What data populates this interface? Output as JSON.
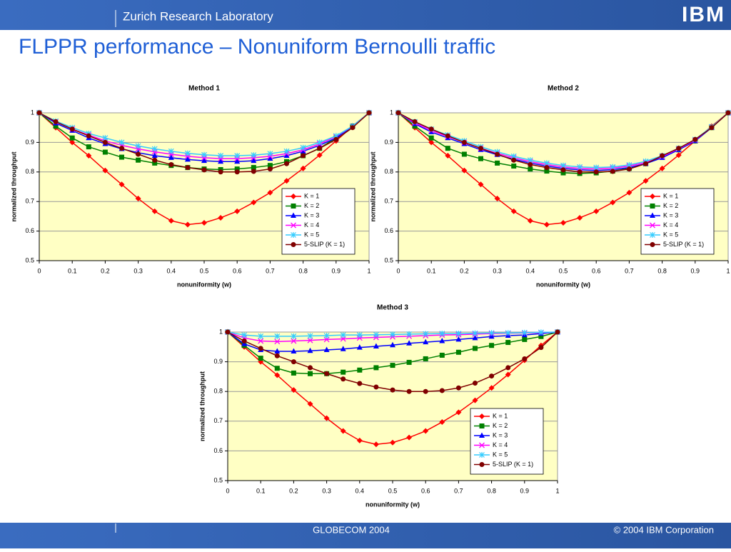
{
  "header": {
    "lab": "Zurich Research Laboratory",
    "logo": "IBM",
    "title": "FLPPR performance – Nonuniform Bernoulli traffic"
  },
  "footer": {
    "event": "GLOBECOM 2004",
    "copyright": "© 2004 IBM Corporation"
  },
  "chart_data": [
    {
      "type": "line",
      "title": "Method 1",
      "xlabel": "nonuniformity (w)",
      "ylabel": "normalized throughput",
      "x": [
        0,
        0.05,
        0.1,
        0.15,
        0.2,
        0.25,
        0.3,
        0.35,
        0.4,
        0.45,
        0.5,
        0.55,
        0.6,
        0.65,
        0.7,
        0.75,
        0.8,
        0.85,
        0.9,
        0.95,
        1
      ],
      "xlim": [
        0,
        1
      ],
      "xticks": [
        0,
        0.1,
        0.2,
        0.3,
        0.4,
        0.5,
        0.6,
        0.7,
        0.8,
        0.9,
        1
      ],
      "ylim": [
        0.5,
        1
      ],
      "yticks": [
        0.5,
        0.6,
        0.7,
        0.8,
        0.9,
        1
      ],
      "grid": true,
      "legend": "lower right",
      "series": [
        {
          "name": "K = 1",
          "color": "#ff0000",
          "marker": "diamond",
          "values": [
            1,
            0.95,
            0.9,
            0.855,
            0.805,
            0.758,
            0.71,
            0.667,
            0.635,
            0.622,
            0.628,
            0.645,
            0.667,
            0.697,
            0.73,
            0.77,
            0.812,
            0.857,
            0.905,
            0.955,
            1
          ]
        },
        {
          "name": "K = 2",
          "color": "#008000",
          "marker": "square",
          "values": [
            1,
            0.955,
            0.915,
            0.885,
            0.867,
            0.85,
            0.84,
            0.83,
            0.822,
            0.815,
            0.81,
            0.808,
            0.81,
            0.815,
            0.822,
            0.835,
            0.855,
            0.88,
            0.915,
            0.955,
            1
          ]
        },
        {
          "name": "K = 3",
          "color": "#0000ff",
          "marker": "triangle",
          "values": [
            1,
            0.965,
            0.94,
            0.915,
            0.895,
            0.878,
            0.865,
            0.855,
            0.848,
            0.842,
            0.838,
            0.835,
            0.835,
            0.838,
            0.845,
            0.855,
            0.87,
            0.89,
            0.915,
            0.955,
            1
          ]
        },
        {
          "name": "K = 4",
          "color": "#ff00ff",
          "marker": "x",
          "values": [
            1,
            0.97,
            0.945,
            0.925,
            0.905,
            0.89,
            0.878,
            0.868,
            0.86,
            0.853,
            0.848,
            0.845,
            0.845,
            0.848,
            0.853,
            0.862,
            0.875,
            0.895,
            0.92,
            0.955,
            1
          ]
        },
        {
          "name": "K = 5",
          "color": "#33ccff",
          "marker": "star",
          "values": [
            1,
            0.972,
            0.95,
            0.93,
            0.915,
            0.9,
            0.888,
            0.878,
            0.87,
            0.863,
            0.858,
            0.855,
            0.855,
            0.857,
            0.862,
            0.87,
            0.882,
            0.9,
            0.922,
            0.955,
            1
          ]
        },
        {
          "name": "5-SLIP (K = 1)",
          "color": "#800000",
          "marker": "circle",
          "values": [
            1,
            0.97,
            0.945,
            0.922,
            0.9,
            0.88,
            0.86,
            0.84,
            0.825,
            0.815,
            0.807,
            0.8,
            0.8,
            0.802,
            0.81,
            0.828,
            0.855,
            0.88,
            0.91,
            0.95,
            1
          ]
        }
      ]
    },
    {
      "type": "line",
      "title": "Method 2",
      "xlabel": "nonuniformity (w)",
      "ylabel": "normalized throughput",
      "x": [
        0,
        0.05,
        0.1,
        0.15,
        0.2,
        0.25,
        0.3,
        0.35,
        0.4,
        0.45,
        0.5,
        0.55,
        0.6,
        0.65,
        0.7,
        0.75,
        0.8,
        0.85,
        0.9,
        0.95,
        1
      ],
      "xlim": [
        0,
        1
      ],
      "xticks": [
        0,
        0.1,
        0.2,
        0.3,
        0.4,
        0.5,
        0.6,
        0.7,
        0.8,
        0.9,
        1
      ],
      "ylim": [
        0.5,
        1
      ],
      "yticks": [
        0.5,
        0.6,
        0.7,
        0.8,
        0.9,
        1
      ],
      "grid": true,
      "legend": "lower right",
      "series": [
        {
          "name": "K = 1",
          "color": "#ff0000",
          "marker": "diamond",
          "values": [
            1,
            0.95,
            0.9,
            0.855,
            0.805,
            0.758,
            0.71,
            0.667,
            0.635,
            0.622,
            0.628,
            0.645,
            0.667,
            0.697,
            0.73,
            0.77,
            0.812,
            0.857,
            0.905,
            0.955,
            1
          ]
        },
        {
          "name": "K = 2",
          "color": "#008000",
          "marker": "square",
          "values": [
            1,
            0.955,
            0.915,
            0.88,
            0.86,
            0.845,
            0.83,
            0.82,
            0.81,
            0.803,
            0.797,
            0.795,
            0.797,
            0.803,
            0.812,
            0.828,
            0.85,
            0.875,
            0.905,
            0.95,
            1
          ]
        },
        {
          "name": "K = 3",
          "color": "#0000ff",
          "marker": "triangle",
          "values": [
            1,
            0.963,
            0.935,
            0.915,
            0.895,
            0.875,
            0.858,
            0.843,
            0.83,
            0.82,
            0.812,
            0.807,
            0.805,
            0.808,
            0.815,
            0.828,
            0.848,
            0.875,
            0.905,
            0.95,
            1
          ]
        },
        {
          "name": "K = 4",
          "color": "#ff00ff",
          "marker": "x",
          "values": [
            1,
            0.966,
            0.94,
            0.92,
            0.9,
            0.88,
            0.863,
            0.848,
            0.835,
            0.825,
            0.817,
            0.812,
            0.81,
            0.813,
            0.82,
            0.832,
            0.852,
            0.878,
            0.908,
            0.952,
            1
          ]
        },
        {
          "name": "K = 5",
          "color": "#33ccff",
          "marker": "star",
          "values": [
            1,
            0.97,
            0.945,
            0.925,
            0.905,
            0.885,
            0.868,
            0.853,
            0.84,
            0.83,
            0.822,
            0.817,
            0.815,
            0.817,
            0.824,
            0.836,
            0.855,
            0.88,
            0.91,
            0.953,
            1
          ]
        },
        {
          "name": "5-SLIP (K = 1)",
          "color": "#800000",
          "marker": "circle",
          "values": [
            1,
            0.97,
            0.945,
            0.922,
            0.9,
            0.88,
            0.86,
            0.84,
            0.825,
            0.815,
            0.807,
            0.8,
            0.8,
            0.802,
            0.81,
            0.828,
            0.855,
            0.88,
            0.91,
            0.95,
            1
          ]
        }
      ]
    },
    {
      "type": "line",
      "title": "Method 3",
      "xlabel": "nonuniformity (w)",
      "ylabel": "normalized throughput",
      "x": [
        0,
        0.05,
        0.1,
        0.15,
        0.2,
        0.25,
        0.3,
        0.35,
        0.4,
        0.45,
        0.5,
        0.55,
        0.6,
        0.65,
        0.7,
        0.75,
        0.8,
        0.85,
        0.9,
        0.95,
        1
      ],
      "xlim": [
        0,
        1
      ],
      "xticks": [
        0,
        0.1,
        0.2,
        0.3,
        0.4,
        0.5,
        0.6,
        0.7,
        0.8,
        0.9,
        1
      ],
      "ylim": [
        0.5,
        1
      ],
      "yticks": [
        0.5,
        0.6,
        0.7,
        0.8,
        0.9,
        1
      ],
      "grid": true,
      "legend": "lower right",
      "series": [
        {
          "name": "K = 1",
          "color": "#ff0000",
          "marker": "diamond",
          "values": [
            1,
            0.95,
            0.9,
            0.855,
            0.805,
            0.758,
            0.71,
            0.667,
            0.635,
            0.622,
            0.628,
            0.645,
            0.667,
            0.697,
            0.73,
            0.77,
            0.812,
            0.857,
            0.905,
            0.955,
            1
          ]
        },
        {
          "name": "K = 2",
          "color": "#008000",
          "marker": "square",
          "values": [
            1,
            0.955,
            0.912,
            0.878,
            0.862,
            0.86,
            0.86,
            0.865,
            0.872,
            0.88,
            0.888,
            0.898,
            0.91,
            0.922,
            0.932,
            0.945,
            0.955,
            0.965,
            0.975,
            0.985,
            1
          ]
        },
        {
          "name": "K = 3",
          "color": "#0000ff",
          "marker": "triangle",
          "values": [
            1,
            0.96,
            0.94,
            0.935,
            0.935,
            0.937,
            0.94,
            0.943,
            0.948,
            0.952,
            0.956,
            0.962,
            0.966,
            0.97,
            0.975,
            0.98,
            0.985,
            0.988,
            0.99,
            0.995,
            1
          ]
        },
        {
          "name": "K = 4",
          "color": "#ff00ff",
          "marker": "x",
          "values": [
            1,
            0.98,
            0.97,
            0.968,
            0.97,
            0.972,
            0.975,
            0.977,
            0.98,
            0.982,
            0.984,
            0.986,
            0.988,
            0.99,
            0.991,
            0.993,
            0.995,
            0.996,
            0.997,
            0.998,
            1
          ]
        },
        {
          "name": "K = 5",
          "color": "#33ccff",
          "marker": "star",
          "values": [
            1,
            0.99,
            0.986,
            0.986,
            0.986,
            0.987,
            0.988,
            0.99,
            0.99,
            0.991,
            0.992,
            0.993,
            0.994,
            0.995,
            0.995,
            0.996,
            0.997,
            0.997,
            0.998,
            0.999,
            1
          ]
        },
        {
          "name": "5-SLIP (K = 1)",
          "color": "#800000",
          "marker": "circle",
          "values": [
            1,
            0.97,
            0.945,
            0.92,
            0.9,
            0.88,
            0.86,
            0.842,
            0.827,
            0.815,
            0.805,
            0.8,
            0.8,
            0.803,
            0.812,
            0.828,
            0.852,
            0.88,
            0.91,
            0.948,
            1
          ]
        }
      ]
    }
  ]
}
